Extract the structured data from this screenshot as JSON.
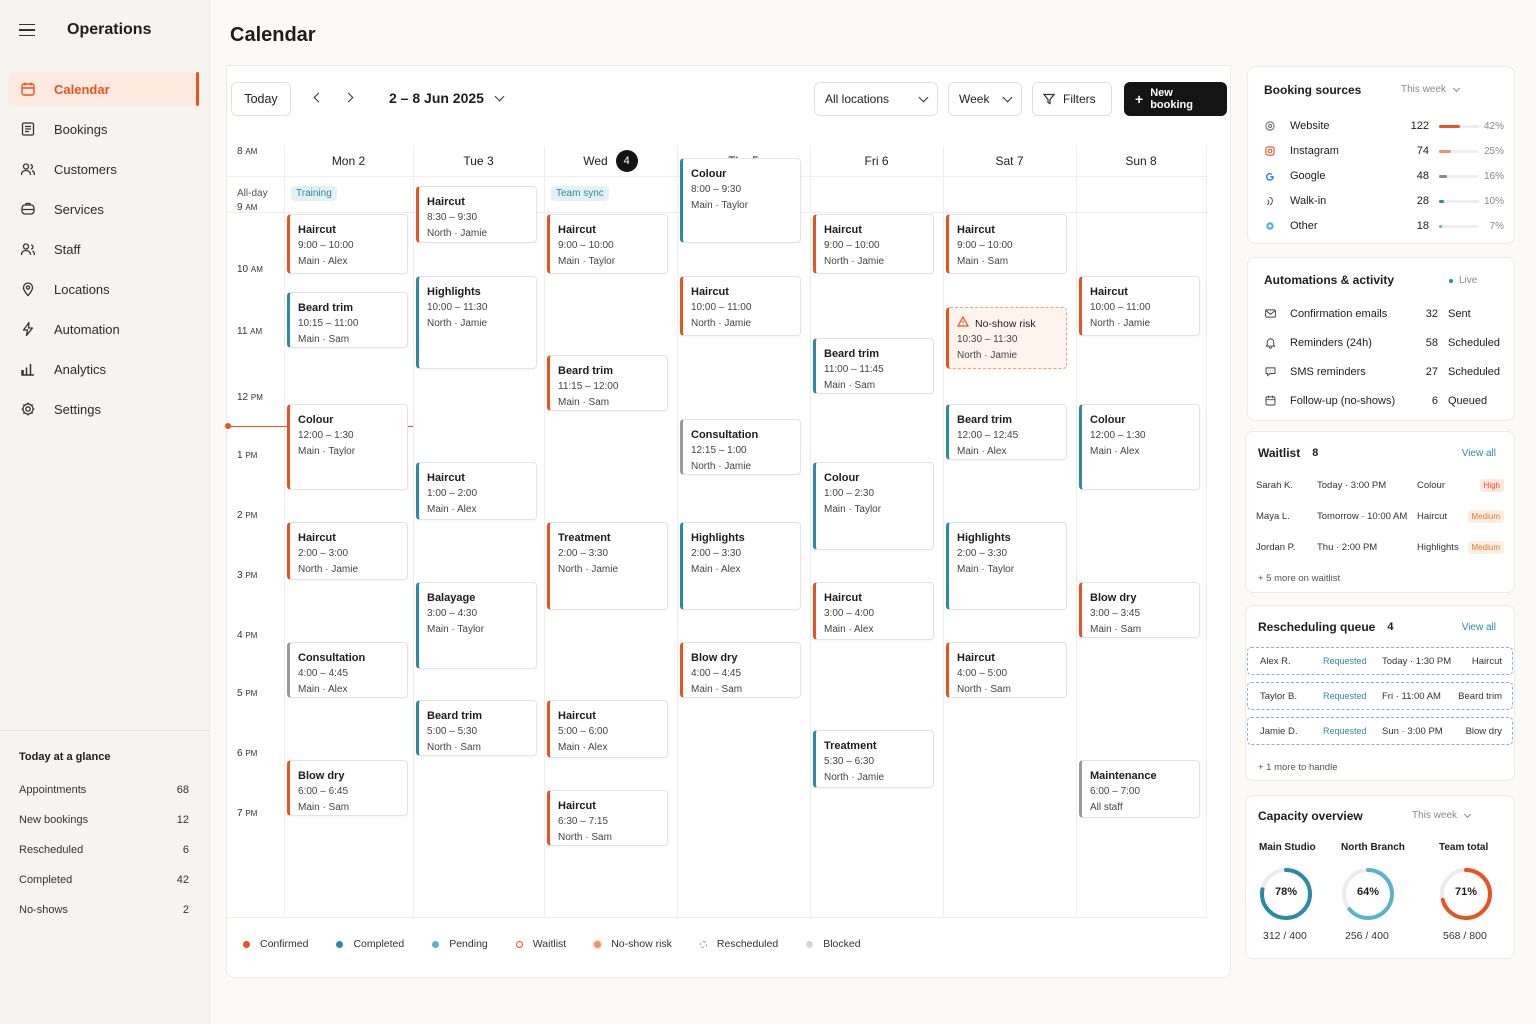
{
  "app": {
    "title": "Operations"
  },
  "sidebar": {
    "items": [
      {
        "label": "Calendar",
        "icon": "calendar-icon",
        "active": true
      },
      {
        "label": "Bookings",
        "icon": "bookings-icon"
      },
      {
        "label": "Customers",
        "icon": "customers-icon"
      },
      {
        "label": "Services",
        "icon": "services-icon"
      },
      {
        "label": "Staff",
        "icon": "staff-icon"
      },
      {
        "label": "Locations",
        "icon": "location-pin-icon"
      },
      {
        "label": "Automation",
        "icon": "lightning-icon"
      },
      {
        "label": "Analytics",
        "icon": "bar-chart-icon"
      },
      {
        "label": "Settings",
        "icon": "gear-icon"
      }
    ],
    "glance": {
      "title": "Today at a glance",
      "rows": [
        {
          "label": "Appointments",
          "value": "68"
        },
        {
          "label": "New bookings",
          "value": "12"
        },
        {
          "label": "Rescheduled",
          "value": "6"
        },
        {
          "label": "Completed",
          "value": "42"
        },
        {
          "label": "No-shows",
          "value": "2"
        }
      ]
    }
  },
  "page": {
    "title": "Calendar"
  },
  "toolbar": {
    "today": "Today",
    "range": "2 – 8 Jun 2025",
    "location": "All locations",
    "view": "Week",
    "filters": "Filters",
    "new_booking": "New booking"
  },
  "calendar": {
    "days": [
      {
        "label": "Mon 2"
      },
      {
        "label": "Tue 3"
      },
      {
        "label": "Wed",
        "badge": "4"
      },
      {
        "label": "Thu 5"
      },
      {
        "label": "Fri 6"
      },
      {
        "label": "Sat 7"
      },
      {
        "label": "Sun 8"
      }
    ],
    "allday_label": "All-day",
    "allday": [
      {
        "day": 0,
        "label": "Training"
      },
      {
        "day": 2,
        "label": "Team sync"
      }
    ],
    "hours": [
      {
        "num": "8",
        "ampm": "AM"
      },
      {
        "num": "9",
        "ampm": "AM"
      },
      {
        "num": "10",
        "ampm": "AM"
      },
      {
        "num": "11",
        "ampm": "AM"
      },
      {
        "num": "12",
        "ampm": "PM"
      },
      {
        "num": "1",
        "ampm": "PM"
      },
      {
        "num": "2",
        "ampm": "PM"
      },
      {
        "num": "3",
        "ampm": "PM"
      },
      {
        "num": "4",
        "ampm": "PM"
      },
      {
        "num": "5",
        "ampm": "PM"
      },
      {
        "num": "6",
        "ampm": "PM"
      },
      {
        "num": "7",
        "ampm": "PM"
      }
    ],
    "events": [
      {
        "day": 0,
        "start": 9.0,
        "end": 10.0,
        "name": "Haircut",
        "time": "9:00 – 10:00",
        "loc": "Main · Alex",
        "status": "o"
      },
      {
        "day": 0,
        "start": 10.25,
        "end": 11.0,
        "name": "Beard trim",
        "time": "10:15 – 11:00",
        "loc": "Main · Sam",
        "status": "t"
      },
      {
        "day": 0,
        "start": 12.0,
        "end": 13.5,
        "name": "Colour",
        "time": "12:00 – 1:30",
        "loc": "Main · Taylor",
        "status": "o"
      },
      {
        "day": 0,
        "start": 14.0,
        "end": 15.0,
        "name": "Haircut",
        "time": "2:00 – 3:00",
        "loc": "North · Jamie",
        "status": "o"
      },
      {
        "day": 0,
        "start": 16.0,
        "end": 16.75,
        "name": "Consultation",
        "time": "4:00 – 4:45",
        "loc": "Main · Alex",
        "status": "g"
      },
      {
        "day": 0,
        "start": 18.0,
        "end": 18.75,
        "name": "Blow dry",
        "time": "6:00 – 6:45",
        "loc": "Main · Sam",
        "status": "o"
      },
      {
        "day": 1,
        "start": 8.5,
        "end": 9.5,
        "name": "Haircut",
        "time": "8:30 – 9:30",
        "loc": "North · Jamie",
        "status": "o"
      },
      {
        "day": 1,
        "start": 10.0,
        "end": 11.5,
        "name": "Highlights",
        "time": "10:00 – 11:30",
        "loc": "North · Jamie",
        "status": "t"
      },
      {
        "day": 1,
        "start": 13.0,
        "end": 14.0,
        "name": "Haircut",
        "time": "1:00 – 2:00",
        "loc": "Main · Alex",
        "status": "t"
      },
      {
        "day": 1,
        "start": 15.0,
        "end": 16.5,
        "name": "Balayage",
        "time": "3:00 – 4:30",
        "loc": "Main · Taylor",
        "status": "t"
      },
      {
        "day": 1,
        "start": 17.0,
        "end": 17.5,
        "name": "Beard trim",
        "time": "5:00 – 5:30",
        "loc": "North · Sam",
        "status": "t"
      },
      {
        "day": 2,
        "start": 9.0,
        "end": 10.0,
        "name": "Haircut",
        "time": "9:00 – 10:00",
        "loc": "Main · Taylor",
        "status": "o"
      },
      {
        "day": 2,
        "start": 11.25,
        "end": 12.0,
        "name": "Beard trim",
        "time": "11:15 – 12:00",
        "loc": "Main · Sam",
        "status": "o"
      },
      {
        "day": 2,
        "start": 14.0,
        "end": 15.5,
        "name": "Treatment",
        "time": "2:00 – 3:30",
        "loc": "North · Jamie",
        "status": "o"
      },
      {
        "day": 2,
        "start": 17.0,
        "end": 18.0,
        "name": "Haircut",
        "time": "5:00 – 6:00",
        "loc": "Main · Alex",
        "status": "o"
      },
      {
        "day": 2,
        "start": 18.5,
        "end": 19.25,
        "name": "Haircut",
        "time": "6:30 – 7:15",
        "loc": "North · Sam",
        "status": "o"
      },
      {
        "day": 3,
        "start": 8.0,
        "end": 9.5,
        "name": "Colour",
        "time": "8:00 – 9:30",
        "loc": "Main · Taylor",
        "status": "t"
      },
      {
        "day": 3,
        "start": 10.0,
        "end": 11.0,
        "name": "Haircut",
        "time": "10:00 – 11:00",
        "loc": "North · Jamie",
        "status": "o"
      },
      {
        "day": 3,
        "start": 12.25,
        "end": 13.0,
        "name": "Consultation",
        "time": "12:15 – 1:00",
        "loc": "North · Jamie",
        "status": "g"
      },
      {
        "day": 3,
        "start": 14.0,
        "end": 15.5,
        "name": "Highlights",
        "time": "2:00 – 3:30",
        "loc": "Main · Alex",
        "status": "t"
      },
      {
        "day": 3,
        "start": 16.0,
        "end": 16.75,
        "name": "Blow dry",
        "time": "4:00 – 4:45",
        "loc": "Main · Sam",
        "status": "o"
      },
      {
        "day": 4,
        "start": 9.0,
        "end": 10.0,
        "name": "Haircut",
        "time": "9:00 – 10:00",
        "loc": "North · Jamie",
        "status": "o"
      },
      {
        "day": 4,
        "start": 11.0,
        "end": 11.75,
        "name": "Beard trim",
        "time": "11:00 – 11:45",
        "loc": "Main · Sam",
        "status": "t"
      },
      {
        "day": 4,
        "start": 13.0,
        "end": 14.5,
        "name": "Colour",
        "time": "1:00 – 2:30",
        "loc": "Main · Taylor",
        "status": "t"
      },
      {
        "day": 4,
        "start": 15.0,
        "end": 16.0,
        "name": "Haircut",
        "time": "3:00 – 4:00",
        "loc": "Main · Alex",
        "status": "o"
      },
      {
        "day": 4,
        "start": 17.5,
        "end": 18.5,
        "name": "Treatment",
        "time": "5:30 – 6:30",
        "loc": "North · Jamie",
        "status": "t"
      },
      {
        "day": 5,
        "start": 9.0,
        "end": 10.0,
        "name": "Haircut",
        "time": "9:00 – 10:00",
        "loc": "Main · Sam",
        "status": "o"
      },
      {
        "day": 5,
        "start": 10.5,
        "end": 11.5,
        "name": "No-show risk",
        "time": "10:30 – 11:30",
        "loc": "North · Jamie",
        "status": "risk"
      },
      {
        "day": 5,
        "start": 12.0,
        "end": 12.75,
        "name": "Beard trim",
        "time": "12:00 – 12:45",
        "loc": "Main · Alex",
        "status": "t"
      },
      {
        "day": 5,
        "start": 14.0,
        "end": 15.5,
        "name": "Highlights",
        "time": "2:00 – 3:30",
        "loc": "Main · Taylor",
        "status": "t"
      },
      {
        "day": 5,
        "start": 16.0,
        "end": 17.0,
        "name": "Haircut",
        "time": "4:00 – 5:00",
        "loc": "North · Sam",
        "status": "o"
      },
      {
        "day": 6,
        "start": 10.0,
        "end": 11.0,
        "name": "Haircut",
        "time": "10:00 – 11:00",
        "loc": "North · Jamie",
        "status": "o"
      },
      {
        "day": 6,
        "start": 12.0,
        "end": 13.5,
        "name": "Colour",
        "time": "12:00 – 1:30",
        "loc": "Main · Alex",
        "status": "t"
      },
      {
        "day": 6,
        "start": 15.0,
        "end": 15.75,
        "name": "Blow dry",
        "time": "3:00 – 3:45",
        "loc": "Main · Sam",
        "status": "o"
      },
      {
        "day": 6,
        "start": 18.0,
        "end": 19.0,
        "name": "Maintenance",
        "time": "6:00 – 7:00",
        "loc": "All staff",
        "status": "g"
      }
    ],
    "legend": [
      {
        "label": "Confirmed",
        "style": "solid",
        "color": "#e8531f"
      },
      {
        "label": "Completed",
        "style": "solid",
        "color": "#2d8aa6"
      },
      {
        "label": "Pending",
        "style": "solid",
        "color": "#5cb3c9"
      },
      {
        "label": "Waitlist",
        "style": "ring",
        "color": "#e8531f"
      },
      {
        "label": "No-show risk",
        "style": "solid-ring",
        "color": "#f0916a"
      },
      {
        "label": "Rescheduled",
        "style": "dashed",
        "color": "#5cb3c9"
      },
      {
        "label": "Blocked",
        "style": "solid",
        "color": "#d7d6d2"
      }
    ]
  },
  "booking_sources": {
    "title": "Booking sources",
    "period": "This week",
    "rows": [
      {
        "name": "Website",
        "count": "122",
        "pct": "42%",
        "value": 0.42,
        "color": "#e8531f",
        "icon": "globe-icon"
      },
      {
        "name": "Instagram",
        "count": "74",
        "pct": "25%",
        "value": 0.25,
        "color": "#f0916a",
        "icon": "instagram-icon"
      },
      {
        "name": "Google",
        "count": "48",
        "pct": "16%",
        "value": 0.16,
        "color": "#8a8a8a",
        "icon": "google-icon"
      },
      {
        "name": "Walk-in",
        "count": "28",
        "pct": "10%",
        "value": 0.1,
        "color": "#2d8aa6",
        "icon": "walk-in-icon"
      },
      {
        "name": "Other",
        "count": "18",
        "pct": "7%",
        "value": 0.07,
        "color": "#5cb3c9",
        "icon": "other-icon"
      }
    ]
  },
  "automations": {
    "title": "Automations & activity",
    "status": "Live",
    "rows": [
      {
        "name": "Confirmation emails",
        "count": "32",
        "state": "Sent",
        "icon": "mail-icon"
      },
      {
        "name": "Reminders (24h)",
        "count": "58",
        "state": "Scheduled",
        "icon": "bell-icon"
      },
      {
        "name": "SMS reminders",
        "count": "27",
        "state": "Scheduled",
        "icon": "chat-icon"
      },
      {
        "name": "Follow-up (no-shows)",
        "count": "6",
        "state": "Queued",
        "icon": "calendar-small-icon"
      }
    ]
  },
  "waitlist": {
    "title": "Waitlist",
    "count": "8",
    "view_all": "View all",
    "rows": [
      {
        "name": "Sarah K.",
        "when": "Today · 3:00 PM",
        "service": "Colour",
        "priority": "High"
      },
      {
        "name": "Maya L.",
        "when": "Tomorrow · 10:00 AM",
        "service": "Haircut",
        "priority": "Medium"
      },
      {
        "name": "Jordan P.",
        "when": "Thu · 2:00 PM",
        "service": "Highlights",
        "priority": "Medium"
      }
    ],
    "more": "+ 5 more on waitlist"
  },
  "rescheduling": {
    "title": "Rescheduling queue",
    "count": "4",
    "view_all": "View all",
    "rows": [
      {
        "name": "Alex R.",
        "status": "Requested",
        "when": "Today · 1:30 PM",
        "service": "Haircut"
      },
      {
        "name": "Taylor B.",
        "status": "Requested",
        "when": "Fri · 11:00 AM",
        "service": "Beard trim"
      },
      {
        "name": "Jamie D.",
        "status": "Requested",
        "when": "Sun · 3:00 PM",
        "service": "Blow dry"
      }
    ],
    "more": "+ 1 more to handle"
  },
  "capacity": {
    "title": "Capacity overview",
    "period": "This week",
    "rings": [
      {
        "label": "Main Studio",
        "pct": "78%",
        "value": 0.78,
        "detail": "312 / 400",
        "color": "#2d8aa6"
      },
      {
        "label": "North Branch",
        "pct": "64%",
        "value": 0.64,
        "detail": "256 / 400",
        "color": "#5cb3c9"
      },
      {
        "label": "Team total",
        "pct": "71%",
        "value": 0.71,
        "detail": "568 / 800",
        "color": "#e8531f"
      }
    ]
  }
}
